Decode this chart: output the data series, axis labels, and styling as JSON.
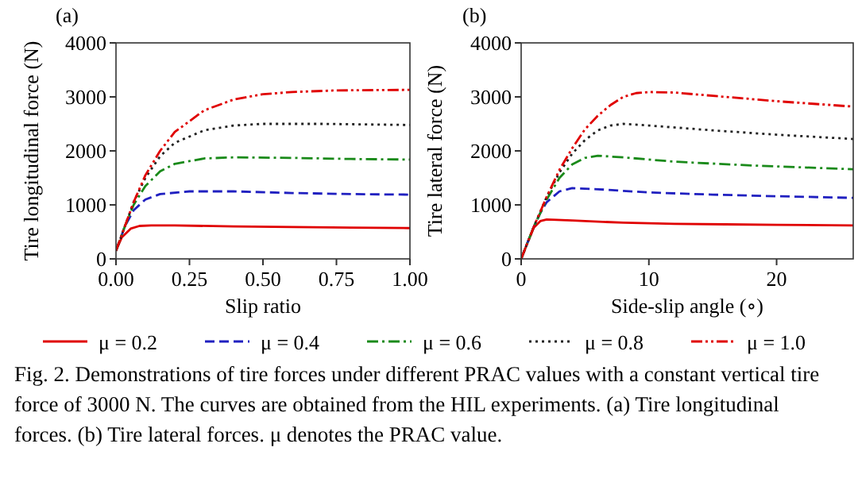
{
  "chart_data": [
    {
      "type": "line",
      "title": "(a)",
      "xlabel": "Slip ratio",
      "ylabel": "Tire longitudinal force (N)",
      "xlim": [
        0,
        1
      ],
      "xticks": [
        {
          "value": 0,
          "label": "0.00"
        },
        {
          "value": 0.25,
          "label": "0.25"
        },
        {
          "value": 0.5,
          "label": "0.50"
        },
        {
          "value": 0.75,
          "label": "0.75"
        },
        {
          "value": 1,
          "label": "1.00"
        }
      ],
      "ylim": [
        0,
        4000
      ],
      "yticks": [
        0,
        1000,
        2000,
        3000,
        4000
      ],
      "grid": false,
      "legend": false,
      "marker": "none",
      "series": [
        {
          "color": "#e00000",
          "line_style": "solid",
          "x": [
            0,
            0.02,
            0.05,
            0.08,
            0.12,
            0.2,
            0.4,
            0.6,
            0.8,
            1.0
          ],
          "values": [
            150,
            400,
            560,
            610,
            620,
            620,
            600,
            590,
            580,
            570
          ]
        },
        {
          "color": "#2020c0",
          "line_style": "dashed",
          "x": [
            0,
            0.03,
            0.06,
            0.1,
            0.15,
            0.25,
            0.4,
            0.6,
            0.8,
            1.0
          ],
          "values": [
            150,
            600,
            900,
            1100,
            1200,
            1250,
            1250,
            1220,
            1200,
            1190
          ]
        },
        {
          "color": "#1a8a1a",
          "line_style": "dashdot",
          "x": [
            0,
            0.03,
            0.06,
            0.1,
            0.15,
            0.2,
            0.3,
            0.4,
            0.6,
            0.8,
            1.0
          ],
          "values": [
            150,
            600,
            1000,
            1350,
            1620,
            1760,
            1860,
            1880,
            1870,
            1850,
            1840
          ]
        },
        {
          "color": "#222222",
          "line_style": "dotted",
          "x": [
            0,
            0.03,
            0.06,
            0.1,
            0.15,
            0.2,
            0.3,
            0.4,
            0.5,
            0.7,
            0.85,
            1.0
          ],
          "values": [
            150,
            600,
            1050,
            1500,
            1900,
            2150,
            2380,
            2470,
            2500,
            2500,
            2490,
            2480
          ]
        },
        {
          "color": "#e00000",
          "line_style": "dashdotdot",
          "x": [
            0,
            0.03,
            0.06,
            0.1,
            0.15,
            0.2,
            0.3,
            0.4,
            0.5,
            0.6,
            0.75,
            1.0
          ],
          "values": [
            150,
            600,
            1050,
            1550,
            2000,
            2350,
            2750,
            2950,
            3050,
            3090,
            3120,
            3130
          ]
        }
      ],
      "annotations": [
        "Fig. 2.  Demonstrations of tire forces under different PRAC values with a constant vertical tire force of 3000 N. The curves are obtained from the HIL experiments. (a) Tire longitudinal forces. (b) Tire lateral forces. μ denotes the PRAC value."
      ]
    },
    {
      "type": "line",
      "title": "(b)",
      "xlabel": "Side-slip angle (∘)",
      "ylabel": "Tire lateral force (N)",
      "xlim": [
        0,
        26
      ],
      "xticks": [
        0,
        10,
        20
      ],
      "ylim": [
        0,
        4000
      ],
      "yticks": [
        0,
        1000,
        2000,
        3000,
        4000
      ],
      "grid": false,
      "legend": "bottom",
      "marker": "none",
      "series": [
        {
          "name": "μ = 0.2",
          "color": "#e00000",
          "line_style": "solid",
          "x": [
            0,
            0.5,
            1,
            1.5,
            2,
            4,
            8,
            12,
            16,
            20,
            26
          ],
          "values": [
            0,
            300,
            580,
            700,
            730,
            710,
            670,
            650,
            640,
            630,
            620
          ]
        },
        {
          "name": "μ = 0.4",
          "color": "#2020c0",
          "line_style": "dashed",
          "x": [
            0,
            0.5,
            1,
            1.5,
            2,
            3,
            4,
            6,
            10,
            15,
            20,
            26
          ],
          "values": [
            0,
            300,
            600,
            850,
            1050,
            1250,
            1310,
            1290,
            1230,
            1190,
            1160,
            1130
          ]
        },
        {
          "name": "μ = 0.6",
          "color": "#1a8a1a",
          "line_style": "dashdot",
          "x": [
            0,
            1,
            2,
            3,
            4,
            5,
            6,
            8,
            12,
            18,
            26
          ],
          "values": [
            0,
            600,
            1100,
            1500,
            1750,
            1870,
            1910,
            1880,
            1800,
            1730,
            1660
          ]
        },
        {
          "name": "μ = 0.8",
          "color": "#222222",
          "line_style": "dotted",
          "x": [
            0,
            1,
            2,
            3,
            4,
            5,
            6,
            7,
            8,
            10,
            15,
            20,
            26
          ],
          "values": [
            0,
            600,
            1150,
            1600,
            1950,
            2200,
            2380,
            2470,
            2500,
            2470,
            2380,
            2300,
            2220
          ]
        },
        {
          "name": "μ = 1.0",
          "color": "#e00000",
          "line_style": "dashdotdot",
          "x": [
            0,
            1,
            2,
            3,
            4,
            5,
            6,
            7,
            8,
            9,
            10,
            12,
            16,
            20,
            26
          ],
          "values": [
            0,
            600,
            1150,
            1650,
            2050,
            2400,
            2650,
            2850,
            3000,
            3070,
            3090,
            3080,
            3000,
            2920,
            2820
          ]
        }
      ]
    }
  ]
}
